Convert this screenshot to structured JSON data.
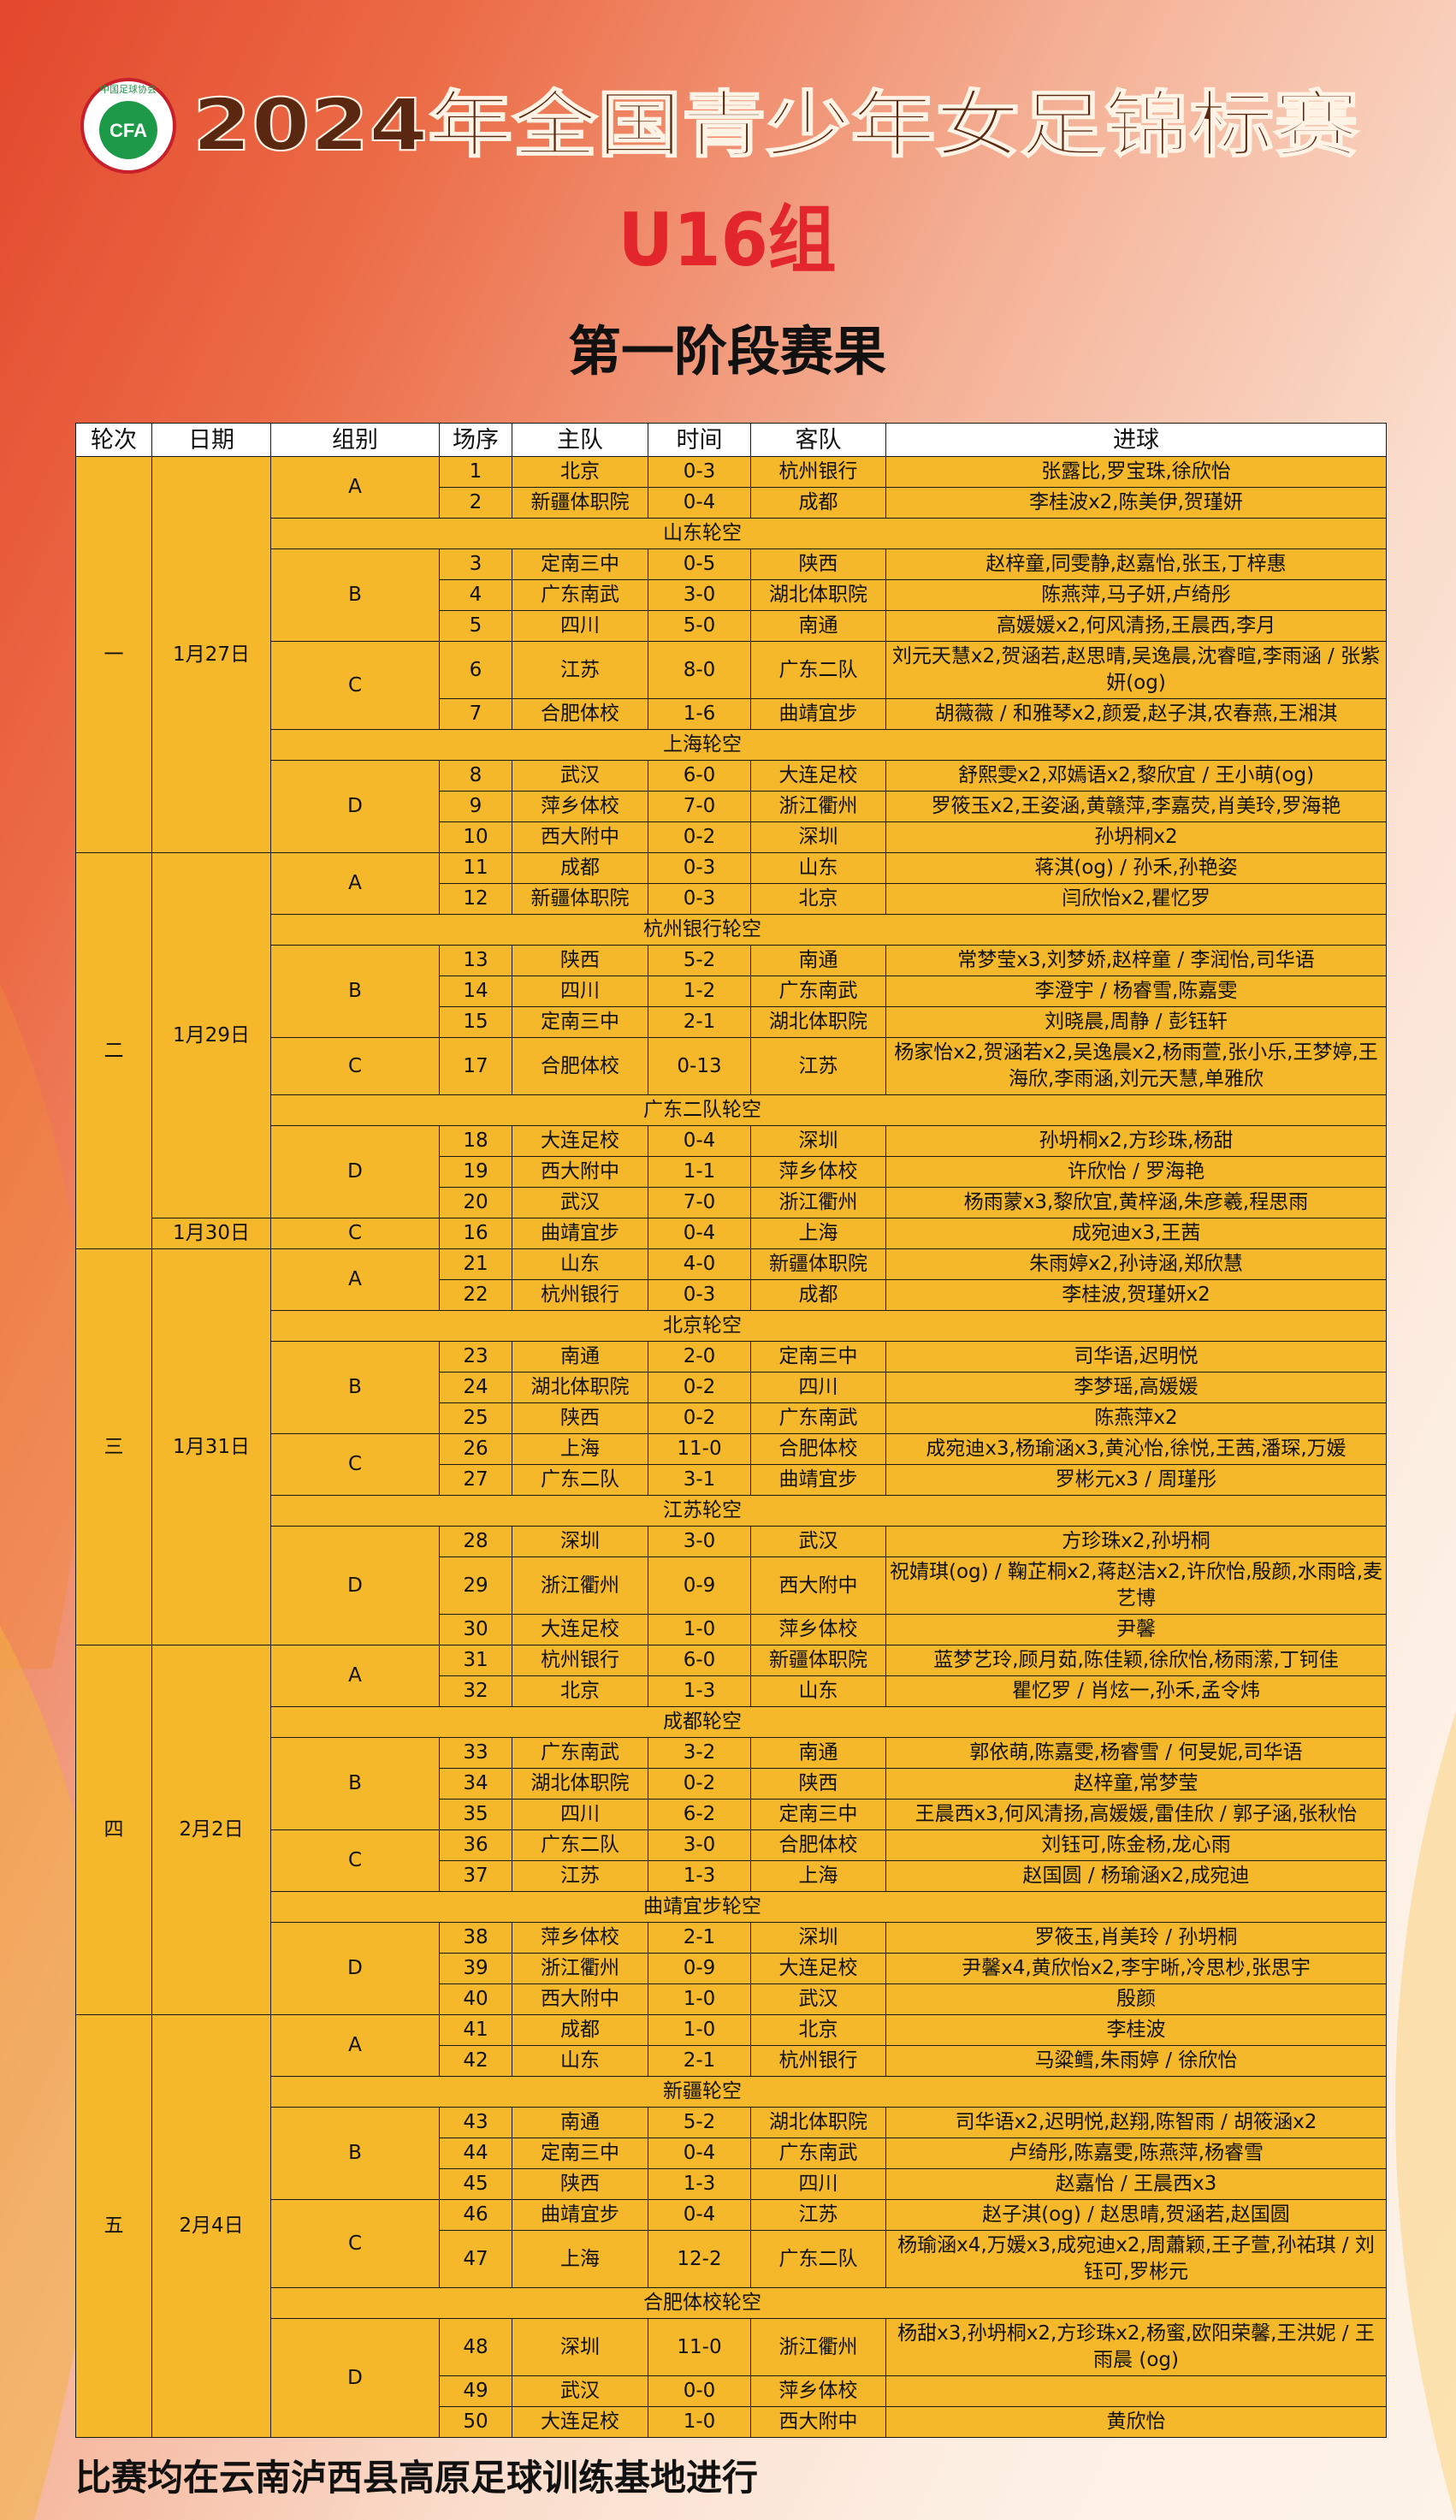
{
  "header": {
    "logo": {
      "text": "CFA",
      "name": "中国足球协会"
    },
    "title": "2024年全国青少年女足锦标赛",
    "group": "U16组",
    "subtitle": "第一阶段赛果"
  },
  "columns": [
    "轮次",
    "日期",
    "组别",
    "场序",
    "主队",
    "时间",
    "客队",
    "进球"
  ],
  "rounds": [
    {
      "round": "一",
      "dates": [
        {
          "date": "1月27日",
          "items": [
            {
              "group": "A",
              "matches": [
                [
                  1,
                  "北京",
                  "0-3",
                  "杭州银行",
                  "张露比,罗宝珠,徐欣怡"
                ],
                [
                  2,
                  "新疆体职院",
                  "0-4",
                  "成都",
                  "李桂波x2,陈美伊,贺瑾妍"
                ]
              ]
            },
            {
              "bye": "山东轮空"
            },
            {
              "group": "B",
              "matches": [
                [
                  3,
                  "定南三中",
                  "0-5",
                  "陕西",
                  "赵梓童,同雯静,赵嘉怡,张玉,丁梓惠"
                ],
                [
                  4,
                  "广东南武",
                  "3-0",
                  "湖北体职院",
                  "陈燕萍,马子妍,卢绮彤"
                ],
                [
                  5,
                  "四川",
                  "5-0",
                  "南通",
                  "高媛媛x2,何风清扬,王晨西,李月"
                ]
              ]
            },
            {
              "group": "C",
              "matches": [
                [
                  6,
                  "江苏",
                  "8-0",
                  "广东二队",
                  "刘元天慧x2,贺涵若,赵思晴,吴逸晨,沈睿暄,李雨涵 / 张紫妍(og)"
                ],
                [
                  7,
                  "合肥体校",
                  "1-6",
                  "曲靖宜步",
                  "胡薇薇 / 和雅琴x2,颜爱,赵子淇,农春燕,王湘淇"
                ]
              ]
            },
            {
              "bye": "上海轮空"
            },
            {
              "group": "D",
              "matches": [
                [
                  8,
                  "武汉",
                  "6-0",
                  "大连足校",
                  "舒熙雯x2,邓嫣语x2,黎欣宜 / 王小萌(og)"
                ],
                [
                  9,
                  "萍乡体校",
                  "7-0",
                  "浙江衢州",
                  "罗筱玉x2,王姿涵,黄赣萍,李嘉荧,肖美玲,罗海艳"
                ],
                [
                  10,
                  "西大附中",
                  "0-2",
                  "深圳",
                  "孙坍桐x2"
                ]
              ]
            }
          ]
        }
      ]
    },
    {
      "round": "二",
      "dates": [
        {
          "date": "1月29日",
          "items": [
            {
              "group": "A",
              "matches": [
                [
                  11,
                  "成都",
                  "0-3",
                  "山东",
                  "蒋淇(og) / 孙禾,孙艳姿"
                ],
                [
                  12,
                  "新疆体职院",
                  "0-3",
                  "北京",
                  "闫欣怡x2,瞿忆罗"
                ]
              ]
            },
            {
              "bye": "杭州银行轮空"
            },
            {
              "group": "B",
              "matches": [
                [
                  13,
                  "陕西",
                  "5-2",
                  "南通",
                  "常梦莹x3,刘梦娇,赵梓童 / 李润怡,司华语"
                ],
                [
                  14,
                  "四川",
                  "1-2",
                  "广东南武",
                  "李澄宇 / 杨睿雪,陈嘉雯"
                ],
                [
                  15,
                  "定南三中",
                  "2-1",
                  "湖北体职院",
                  "刘晓晨,周静 / 彭钰轩"
                ]
              ]
            },
            {
              "group": "C",
              "matches": [
                [
                  17,
                  "合肥体校",
                  "0-13",
                  "江苏",
                  "杨家怡x2,贺涵若x2,吴逸晨x2,杨雨萱,张小乐,王梦婷,王海欣,李雨涵,刘元天慧,单雅欣"
                ]
              ]
            },
            {
              "bye": "广东二队轮空"
            },
            {
              "group": "D",
              "matches": [
                [
                  18,
                  "大连足校",
                  "0-4",
                  "深圳",
                  "孙坍桐x2,方珍珠,杨甜"
                ],
                [
                  19,
                  "西大附中",
                  "1-1",
                  "萍乡体校",
                  "许欣怡 / 罗海艳"
                ],
                [
                  20,
                  "武汉",
                  "7-0",
                  "浙江衢州",
                  "杨雨蒙x3,黎欣宜,黄梓涵,朱彦羲,程思雨"
                ]
              ]
            }
          ]
        },
        {
          "date": "1月30日",
          "items": [
            {
              "group": "C",
              "matches": [
                [
                  16,
                  "曲靖宜步",
                  "0-4",
                  "上海",
                  "成宛迪x3,王茜"
                ]
              ]
            }
          ]
        }
      ]
    },
    {
      "round": "三",
      "dates": [
        {
          "date": "1月31日",
          "items": [
            {
              "group": "A",
              "matches": [
                [
                  21,
                  "山东",
                  "4-0",
                  "新疆体职院",
                  "朱雨婷x2,孙诗涵,郑欣慧"
                ],
                [
                  22,
                  "杭州银行",
                  "0-3",
                  "成都",
                  "李桂波,贺瑾妍x2"
                ]
              ]
            },
            {
              "bye": "北京轮空"
            },
            {
              "group": "B",
              "matches": [
                [
                  23,
                  "南通",
                  "2-0",
                  "定南三中",
                  "司华语,迟明悦"
                ],
                [
                  24,
                  "湖北体职院",
                  "0-2",
                  "四川",
                  "李梦瑶,高媛媛"
                ],
                [
                  25,
                  "陕西",
                  "0-2",
                  "广东南武",
                  "陈燕萍x2"
                ]
              ]
            },
            {
              "group": "C",
              "matches": [
                [
                  26,
                  "上海",
                  "11-0",
                  "合肥体校",
                  "成宛迪x3,杨瑜涵x3,黄沁怡,徐悦,王茜,潘琛,万媛"
                ],
                [
                  27,
                  "广东二队",
                  "3-1",
                  "曲靖宜步",
                  "罗彬元x3 / 周瑾彤"
                ]
              ]
            },
            {
              "bye": "江苏轮空"
            },
            {
              "group": "D",
              "matches": [
                [
                  28,
                  "深圳",
                  "3-0",
                  "武汉",
                  "方珍珠x2,孙坍桐"
                ],
                [
                  29,
                  "浙江衢州",
                  "0-9",
                  "西大附中",
                  "祝婧琪(og) / 鞠芷桐x2,蒋赵洁x2,许欣怡,殷颜,水雨晗,麦艺博"
                ],
                [
                  30,
                  "大连足校",
                  "1-0",
                  "萍乡体校",
                  "尹馨"
                ]
              ]
            }
          ]
        }
      ]
    },
    {
      "round": "四",
      "dates": [
        {
          "date": "2月2日",
          "items": [
            {
              "group": "A",
              "matches": [
                [
                  31,
                  "杭州银行",
                  "6-0",
                  "新疆体职院",
                  "蓝梦艺玲,顾月茹,陈佳颖,徐欣怡,杨雨潆,丁钶佳"
                ],
                [
                  32,
                  "北京",
                  "1-3",
                  "山东",
                  "瞿忆罗 / 肖炫一,孙禾,孟令炜"
                ]
              ]
            },
            {
              "bye": "成都轮空"
            },
            {
              "group": "B",
              "matches": [
                [
                  33,
                  "广东南武",
                  "3-2",
                  "南通",
                  "郭依萌,陈嘉雯,杨睿雪 / 何旻妮,司华语"
                ],
                [
                  34,
                  "湖北体职院",
                  "0-2",
                  "陕西",
                  "赵梓童,常梦莹"
                ],
                [
                  35,
                  "四川",
                  "6-2",
                  "定南三中",
                  "王晨西x3,何风清扬,高媛媛,雷佳欣 / 郭子涵,张秋怡"
                ]
              ]
            },
            {
              "group": "C",
              "matches": [
                [
                  36,
                  "广东二队",
                  "3-0",
                  "合肥体校",
                  "刘钰可,陈金杨,龙心雨"
                ],
                [
                  37,
                  "江苏",
                  "1-3",
                  "上海",
                  "赵国圆 / 杨瑜涵x2,成宛迪"
                ]
              ]
            },
            {
              "bye": "曲靖宜步轮空"
            },
            {
              "group": "D",
              "matches": [
                [
                  38,
                  "萍乡体校",
                  "2-1",
                  "深圳",
                  "罗筱玉,肖美玲 / 孙坍桐"
                ],
                [
                  39,
                  "浙江衢州",
                  "0-9",
                  "大连足校",
                  "尹馨x4,黄欣怡x2,李宇晰,冷思杪,张思宇"
                ],
                [
                  40,
                  "西大附中",
                  "1-0",
                  "武汉",
                  "殷颜"
                ]
              ]
            }
          ]
        }
      ]
    },
    {
      "round": "五",
      "dates": [
        {
          "date": "2月4日",
          "items": [
            {
              "group": "A",
              "matches": [
                [
                  41,
                  "成都",
                  "1-0",
                  "北京",
                  "李桂波"
                ],
                [
                  42,
                  "山东",
                  "2-1",
                  "杭州银行",
                  "马粱鳕,朱雨婷 / 徐欣怡"
                ]
              ]
            },
            {
              "bye": "新疆轮空"
            },
            {
              "group": "B",
              "matches": [
                [
                  43,
                  "南通",
                  "5-2",
                  "湖北体职院",
                  "司华语x2,迟明悦,赵翔,陈智雨 / 胡筱涵x2"
                ],
                [
                  44,
                  "定南三中",
                  "0-4",
                  "广东南武",
                  "卢绮彤,陈嘉雯,陈燕萍,杨睿雪"
                ],
                [
                  45,
                  "陕西",
                  "1-3",
                  "四川",
                  "赵嘉怡 / 王晨西x3"
                ]
              ]
            },
            {
              "group": "C",
              "matches": [
                [
                  46,
                  "曲靖宜步",
                  "0-4",
                  "江苏",
                  "赵子淇(og) / 赵思晴,贺涵若,赵国圆"
                ],
                [
                  47,
                  "上海",
                  "12-2",
                  "广东二队",
                  "杨瑜涵x4,万媛x3,成宛迪x2,周蕭颖,王子萱,孙祐琪 / 刘钰可,罗彬元"
                ]
              ]
            },
            {
              "bye": "合肥体校轮空"
            },
            {
              "group": "D",
              "matches": [
                [
                  48,
                  "深圳",
                  "11-0",
                  "浙江衢州",
                  "杨甜x3,孙坍桐x2,方珍珠x2,杨蜜,欧阳荣馨,王洪妮 / 王雨晨 (og)"
                ],
                [
                  49,
                  "武汉",
                  "0-0",
                  "萍乡体校"
                ],
                [
                  50,
                  "大连足校",
                  "1-0",
                  "西大附中",
                  "黄欣怡"
                ]
              ]
            }
          ]
        }
      ]
    }
  ],
  "footer": "比赛均在云南泸西县高原足球训练基地进行"
}
